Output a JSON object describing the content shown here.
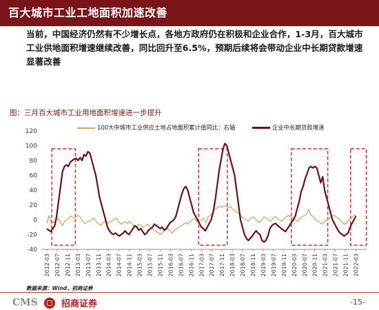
{
  "header": {
    "title": "百大城市工业工地面积加速改善"
  },
  "summary": "当前，中国经济仍然有不少增长点，各地方政府仍在积极和企业合作，1-3月，百大城市工业供地面积增速继续改善，同比回升至6.5%，预期后续将会带动企业中长期贷款增速显著改善",
  "chart_caption": "图：三月百大城市工业用地面积增速进一步提升",
  "source": "数据来源：Wind，招商证券",
  "footer": {
    "logo_cms": "CMS",
    "logo_name": "招商证券",
    "page": "-15-"
  },
  "colors": {
    "brand": "#7a1418",
    "land_series": "#c8a96a",
    "loan_series": "#6b0f1a",
    "highlight_box": "#e02020"
  },
  "chart_data": {
    "type": "line",
    "ylim": [
      -40,
      120
    ],
    "yticks": [
      -40,
      -20,
      0,
      20,
      40,
      60,
      80,
      100,
      120
    ],
    "x_labels": [
      "2012-03",
      "2012-07",
      "2012-11",
      "2013-03",
      "2013-07",
      "2013-11",
      "2014-03",
      "2014-07",
      "2014-11",
      "2015-03",
      "2015-07",
      "2015-11",
      "2016-03",
      "2016-07",
      "2016-11",
      "2017-03",
      "2017-07",
      "2017-11",
      "2018-03",
      "2018-07",
      "2018-11",
      "2019-03",
      "2019-07",
      "2019-11",
      "2020-03",
      "2020-07",
      "2020-11",
      "2021-03",
      "2021-07",
      "2021-11",
      "2022-03"
    ],
    "highlight_ranges": [
      [
        "2012-06",
        "2013-01"
      ],
      [
        "2017-03",
        "2017-12"
      ],
      [
        "2020-03",
        "2021-03"
      ],
      [
        "2022-02",
        "2022-06"
      ]
    ],
    "series": [
      {
        "name": "100大中城市工业供应土地占地面积累计值同比：右轴",
        "values": [
          -5,
          6,
          -5,
          -3,
          -2,
          2,
          -3,
          -8,
          -2,
          0,
          3,
          5,
          2,
          4,
          6,
          3,
          -2,
          -5,
          -3,
          -2,
          0,
          2,
          -2,
          -5,
          -8,
          -4,
          -2,
          -5,
          -3,
          -2,
          0,
          2,
          -2,
          -6,
          -4,
          -3,
          -5,
          -2,
          -6,
          -8,
          -10,
          -6,
          -8,
          -10,
          -8,
          -6,
          -10,
          -12,
          -14,
          -16,
          -18,
          -20,
          -16,
          -14,
          -12,
          -15,
          -18,
          -14,
          -12,
          -10,
          -8,
          -6,
          -4,
          -6,
          -2,
          0,
          2,
          -2,
          -4,
          0,
          2,
          -4,
          4,
          6,
          10,
          14,
          16,
          18,
          17,
          18,
          19,
          16,
          18,
          14,
          12,
          10,
          8,
          4,
          2,
          0,
          -2,
          2,
          4,
          2,
          -2,
          -4,
          0,
          4,
          2,
          0,
          -2,
          2,
          4,
          2,
          0,
          -2,
          2,
          4,
          6,
          4,
          2,
          0,
          -2,
          2,
          4,
          6,
          8,
          14,
          6,
          4,
          0,
          -2,
          -4,
          -6,
          -2,
          0,
          2,
          4,
          6,
          4,
          2,
          0,
          -4,
          -6,
          -4,
          0,
          2,
          6,
          7
        ],
        "color": "#c8a96a"
      },
      {
        "name": "企业中长期贷款增速",
        "values": [
          -12,
          -14,
          -16,
          -12,
          -8,
          5,
          25,
          45,
          65,
          72,
          74,
          72,
          78,
          80,
          82,
          83,
          80,
          84,
          80,
          88,
          86,
          92,
          90,
          80,
          70,
          60,
          45,
          30,
          20,
          10,
          0,
          -10,
          -15,
          -18,
          -20,
          -18,
          -20,
          -22,
          -20,
          -18,
          -15,
          -18,
          -20,
          -16,
          -12,
          -8,
          -10,
          -14,
          -12,
          -16,
          -20,
          -18,
          -14,
          -12,
          -10,
          -6,
          -8,
          -10,
          -12,
          -10,
          -14,
          -12,
          -8,
          -4,
          -2,
          0,
          5,
          15,
          25,
          35,
          42,
          45,
          40,
          30,
          20,
          10,
          5,
          0,
          -5,
          -10,
          -12,
          -15,
          -10,
          -5,
          0,
          10,
          25,
          45,
          65,
          80,
          95,
          103,
          100,
          90,
          80,
          70,
          60,
          40,
          20,
          0,
          -10,
          -20,
          -25,
          -28,
          -25,
          -22,
          -18,
          -15,
          -18,
          -20,
          -28,
          -30,
          -28,
          -22,
          -12,
          -8,
          -6,
          -5,
          -8,
          -10,
          -12,
          -14,
          -16,
          -12,
          -8,
          -4,
          0,
          5,
          15,
          25,
          38,
          45,
          55,
          62,
          70,
          72,
          70,
          72,
          70,
          60,
          50,
          58,
          40,
          30,
          20,
          10,
          0,
          -5,
          -10,
          -15,
          -18,
          -20,
          -22,
          -20,
          -18,
          -10,
          -5,
          0,
          5
        ],
        "color": "#6b0f1a"
      }
    ]
  }
}
